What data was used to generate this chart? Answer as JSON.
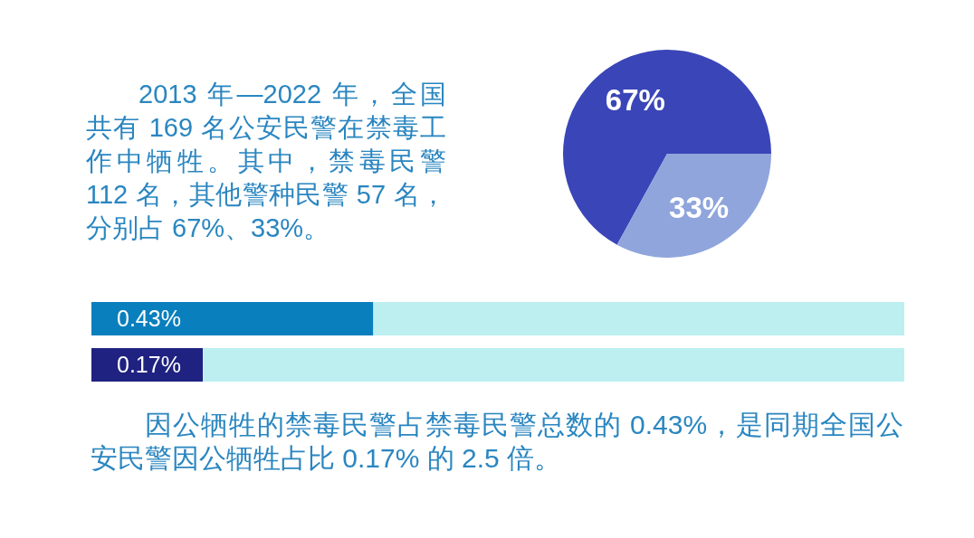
{
  "chart_data": [
    {
      "type": "pie",
      "categories": [
        null,
        null
      ],
      "values": [
        67,
        33
      ],
      "colors": [
        "#3a45b8",
        "#8fa5dc"
      ],
      "value_labels": [
        "67%",
        "33%"
      ],
      "annotations": [
        "2013 年—2022 年，全国共有 169 名公安民警在禁毒工作中牺牲。其中，禁毒民警 112 名，其他警种民警 57 名，分别占 67%、33%。"
      ]
    },
    {
      "type": "bar",
      "orientation": "horizontal",
      "stacked": true,
      "categories": [
        null,
        null
      ],
      "series": [
        {
          "colors": [
            "#0a7fbd",
            "#1f2280"
          ],
          "values": [
            0.43,
            0.17
          ],
          "value_labels": [
            "0.43%",
            "0.17%"
          ]
        },
        {
          "color": "#bdeff1",
          "values": [
            0.81,
            1.07
          ]
        }
      ],
      "xlim": [
        0,
        1.24
      ],
      "tick_labels": false,
      "annotations": [
        "因公牺牲的禁毒民警占禁毒民警总数的 0.43%，是同期全国公安民警因公牺牲占比 0.17% 的 2.5 倍。"
      ]
    }
  ]
}
